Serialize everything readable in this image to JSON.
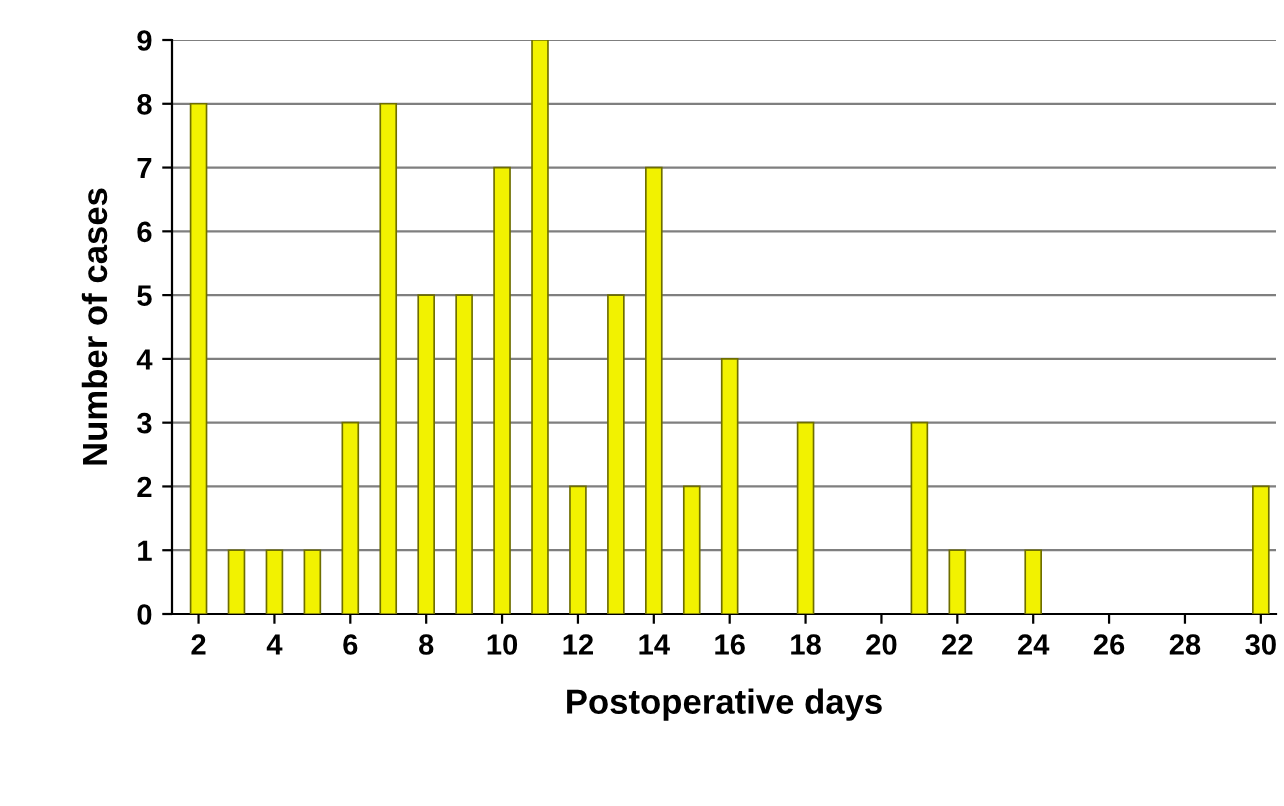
{
  "chart_data": {
    "type": "bar",
    "xlabel": "Postoperative days",
    "ylabel": "Number of cases",
    "x": [
      2,
      3,
      4,
      5,
      6,
      7,
      8,
      9,
      10,
      11,
      12,
      13,
      14,
      15,
      16,
      18,
      21,
      22,
      24,
      30
    ],
    "values": [
      8,
      1,
      1,
      1,
      3,
      8,
      5,
      5,
      7,
      9,
      2,
      5,
      7,
      2,
      4,
      3,
      3,
      1,
      1,
      2
    ],
    "color": "#f2f200",
    "xlim": [
      1.3,
      30.4
    ],
    "xticks": [
      2,
      4,
      6,
      8,
      10,
      12,
      14,
      16,
      18,
      20,
      22,
      24,
      26,
      28,
      30
    ],
    "ylim": [
      0,
      9
    ],
    "yticks": [
      0,
      1,
      2,
      3,
      4,
      5,
      6,
      7,
      8,
      9
    ],
    "grid": "y"
  }
}
